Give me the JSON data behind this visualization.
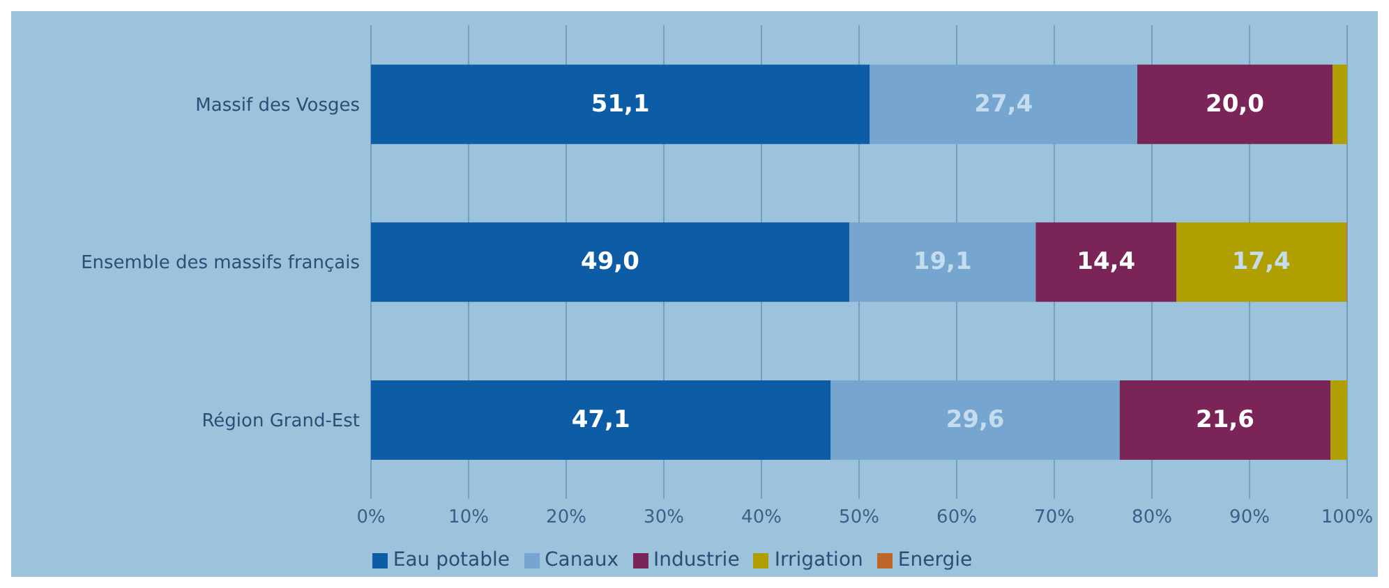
{
  "chart_data": {
    "type": "bar",
    "orientation": "horizontal",
    "stacked": true,
    "categories": [
      "Massif des Vosges",
      "Ensemble des massifs français",
      "Région Grand-Est"
    ],
    "series": [
      {
        "name": "Eau potable",
        "color": "#0d5ca6",
        "values": [
          51.1,
          49.0,
          47.1
        ],
        "value_labels": [
          "51,1",
          "49,0",
          "47,1"
        ]
      },
      {
        "name": "Canaux",
        "color": "#76a6cf",
        "values": [
          27.4,
          19.1,
          29.6
        ],
        "value_labels": [
          "27,4",
          "19,1",
          "29,6"
        ]
      },
      {
        "name": "Industrie",
        "color": "#7a2458",
        "values": [
          20.0,
          14.4,
          21.6
        ],
        "value_labels": [
          "20,0",
          "14,4",
          "21,6"
        ]
      },
      {
        "name": "Irrigation",
        "color": "#b09f00",
        "values": [
          1.5,
          17.4,
          1.7
        ],
        "value_labels": [
          null,
          "17,4",
          null
        ]
      },
      {
        "name": "Energie",
        "color": "#c0662a",
        "values": [
          0,
          0.1,
          0
        ],
        "value_labels": [
          null,
          null,
          null
        ]
      }
    ],
    "xlim": [
      0,
      100
    ],
    "xticks": [
      {
        "value": 0,
        "label": "0%"
      },
      {
        "value": 10,
        "label": "10%"
      },
      {
        "value": 20,
        "label": "20%"
      },
      {
        "value": 30,
        "label": "30%"
      },
      {
        "value": 40,
        "label": "40%"
      },
      {
        "value": 50,
        "label": "50%"
      },
      {
        "value": 60,
        "label": "60%"
      },
      {
        "value": 70,
        "label": "70%"
      },
      {
        "value": 80,
        "label": "80%"
      },
      {
        "value": 90,
        "label": "90%"
      },
      {
        "value": 100,
        "label": "100%"
      }
    ],
    "grid": "x",
    "legend": "bottom"
  }
}
